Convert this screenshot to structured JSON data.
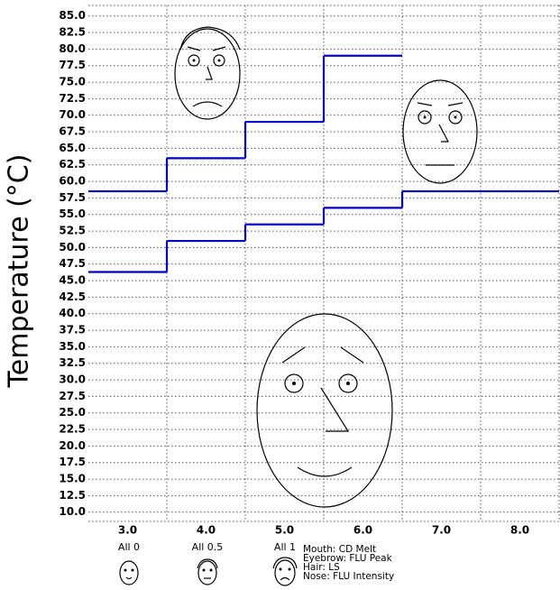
{
  "chart_data": {
    "type": "step",
    "y_label": "Temperature (°C)",
    "categories": [
      "3.0",
      "4.0",
      "5.0",
      "6.0",
      "7.0",
      "8.0"
    ],
    "series": [
      {
        "color": "#0000cc",
        "values": [
          58.5,
          63.5,
          69,
          79,
          null,
          null
        ]
      },
      {
        "color": "#0000cc",
        "values": [
          46.3,
          51,
          53.5,
          56,
          58.5,
          58.5
        ]
      }
    ],
    "ylim": [
      8.6,
      86.6
    ],
    "yticks": [
      {
        "value": 10,
        "label": "10.0"
      },
      {
        "value": 12.5,
        "label": "12.5"
      },
      {
        "value": 15,
        "label": "15.0"
      },
      {
        "value": 17.5,
        "label": "17.5"
      },
      {
        "value": 20,
        "label": "20.0"
      },
      {
        "value": 22.5,
        "label": "22.5"
      },
      {
        "value": 25,
        "label": "25.0"
      },
      {
        "value": 27.5,
        "label": "27.5"
      },
      {
        "value": 30,
        "label": "30.0"
      },
      {
        "value": 32.5,
        "label": "32.5"
      },
      {
        "value": 35,
        "label": "35.0"
      },
      {
        "value": 37.5,
        "label": "37.5"
      },
      {
        "value": 40,
        "label": "40.0"
      },
      {
        "value": 42.5,
        "label": "42.5"
      },
      {
        "value": 45,
        "label": "45.0"
      },
      {
        "value": 47.5,
        "label": "47.5"
      },
      {
        "value": 50,
        "label": "50.0"
      },
      {
        "value": 52.5,
        "label": "52.5"
      },
      {
        "value": 55,
        "label": "55.0"
      },
      {
        "value": 57.5,
        "label": "57.5"
      },
      {
        "value": 60,
        "label": "60.0"
      },
      {
        "value": 62.5,
        "label": "62.5"
      },
      {
        "value": 65,
        "label": "65.0"
      },
      {
        "value": 67.5,
        "label": "67.5"
      },
      {
        "value": 70,
        "label": "70.0"
      },
      {
        "value": 72.5,
        "label": "72.5"
      },
      {
        "value": 75,
        "label": "75.0"
      },
      {
        "value": 77.5,
        "label": "77.5"
      },
      {
        "value": 80,
        "label": "80.0"
      },
      {
        "value": 82.5,
        "label": "82.5"
      },
      {
        "value": 85,
        "label": "85.0"
      }
    ],
    "grid": true,
    "legend": {
      "faces": [
        "All 0",
        "All 0.5",
        "All 1"
      ],
      "features": [
        "Mouth: CD Melt",
        "Eyebrow: FLU Peak",
        "Hair: LS",
        "Nose: FLU Intensity"
      ]
    }
  }
}
